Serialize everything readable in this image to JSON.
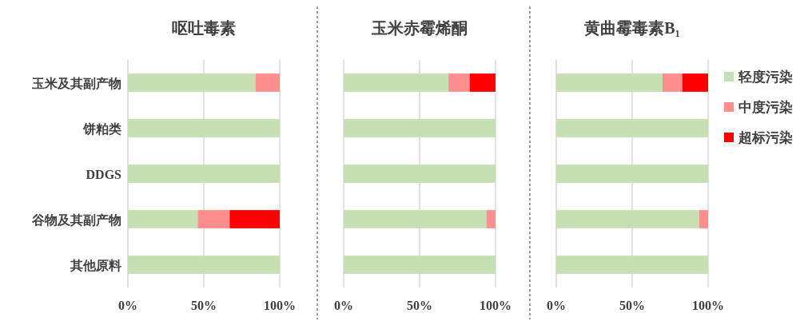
{
  "chart_data": [
    {
      "type": "bar",
      "orientation": "horizontal",
      "stacked": true,
      "title": "呕吐毒素",
      "categories": [
        "玉米及其副产物",
        "饼粕类",
        "DDGS",
        "谷物及其副产物",
        "其他原料"
      ],
      "series": [
        {
          "color": "#c6e0b4",
          "values": [
            84,
            100,
            100,
            46,
            100
          ]
        },
        {
          "color": "#ff8f8f",
          "values": [
            16,
            0,
            0,
            21,
            0
          ]
        },
        {
          "color": "#ff0000",
          "values": [
            0,
            0,
            0,
            33,
            0
          ]
        }
      ],
      "xlim": [
        0,
        100
      ],
      "xticks": [
        {
          "value": 0,
          "label": "0%"
        },
        {
          "value": 50,
          "label": "50%"
        },
        {
          "value": 100,
          "label": "100%"
        }
      ],
      "grid": "x",
      "legend": false
    },
    {
      "type": "bar",
      "orientation": "horizontal",
      "stacked": true,
      "title": "玉米赤霉烯酮",
      "categories": [
        null,
        null,
        null,
        null,
        null
      ],
      "tick_labels": "x",
      "series": [
        {
          "color": "#c6e0b4",
          "values": [
            69,
            100,
            100,
            94,
            100
          ]
        },
        {
          "color": "#ff8f8f",
          "values": [
            14,
            0,
            0,
            6,
            0
          ]
        },
        {
          "color": "#ff0000",
          "values": [
            17,
            0,
            0,
            0,
            0
          ]
        }
      ],
      "xlim": [
        0,
        100
      ],
      "xticks": [
        {
          "value": 0,
          "label": "0%"
        },
        {
          "value": 50,
          "label": "50%"
        },
        {
          "value": 100,
          "label": "100%"
        }
      ],
      "grid": "x",
      "legend": false
    },
    {
      "type": "bar",
      "orientation": "horizontal",
      "stacked": true,
      "title": "黄曲霉毒素B₁",
      "categories": [
        null,
        null,
        null,
        null,
        null
      ],
      "tick_labels": "x",
      "series": [
        {
          "name": "轻度污染",
          "color": "#c6e0b4",
          "values": [
            70,
            100,
            100,
            94,
            100
          ]
        },
        {
          "name": "中度污染",
          "color": "#ff8f8f",
          "values": [
            13,
            0,
            0,
            6,
            0
          ]
        },
        {
          "name": "超标污染",
          "color": "#ff0000",
          "values": [
            17,
            0,
            0,
            0,
            0
          ]
        }
      ],
      "xlim": [
        0,
        100
      ],
      "xticks": [
        {
          "value": 0,
          "label": "0%"
        },
        {
          "value": 50,
          "label": "50%"
        },
        {
          "value": 100,
          "label": "100%"
        }
      ],
      "grid": "x",
      "legend": "right"
    }
  ]
}
